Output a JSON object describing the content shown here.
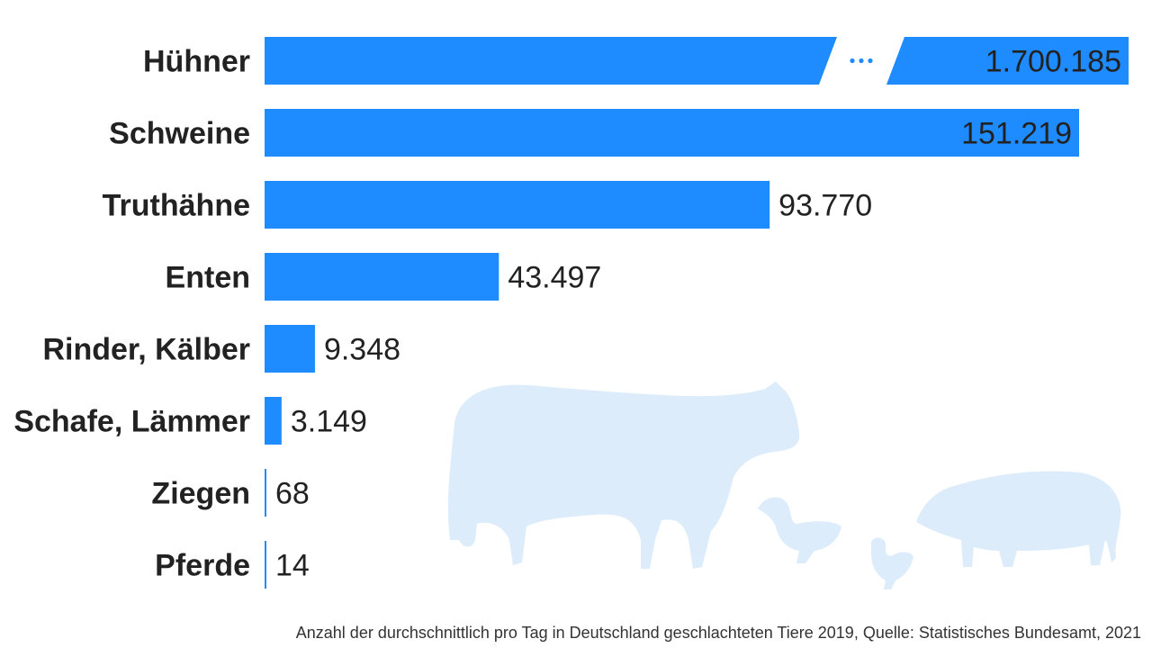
{
  "chart_data": {
    "type": "bar",
    "orientation": "horizontal",
    "categories": [
      "Hühner",
      "Schweine",
      "Truthähne",
      "Enten",
      "Rinder, Kälber",
      "Schafe, Lämmer",
      "Ziegen",
      "Pferde"
    ],
    "values": [
      1700185,
      151219,
      93770,
      43497,
      9348,
      3149,
      68,
      14
    ],
    "value_labels": [
      "1.700.185",
      "151.219",
      "93.770",
      "43.497",
      "9.348",
      "3.149",
      "68",
      "14"
    ],
    "axis_break": {
      "category": "Hühner",
      "symbol": "..."
    },
    "bar_color": "#1e8cff",
    "silhouette_color": "#dcecfb",
    "decorative_icons": [
      "cow-silhouette-icon",
      "duck-silhouette-icon",
      "chicken-silhouette-icon",
      "pig-silhouette-icon"
    ]
  },
  "source_note": "Anzahl der durchschnittlich pro Tag in Deutschland geschlachteten Tiere 2019, Quelle: Statistisches Bundesamt, 2021"
}
